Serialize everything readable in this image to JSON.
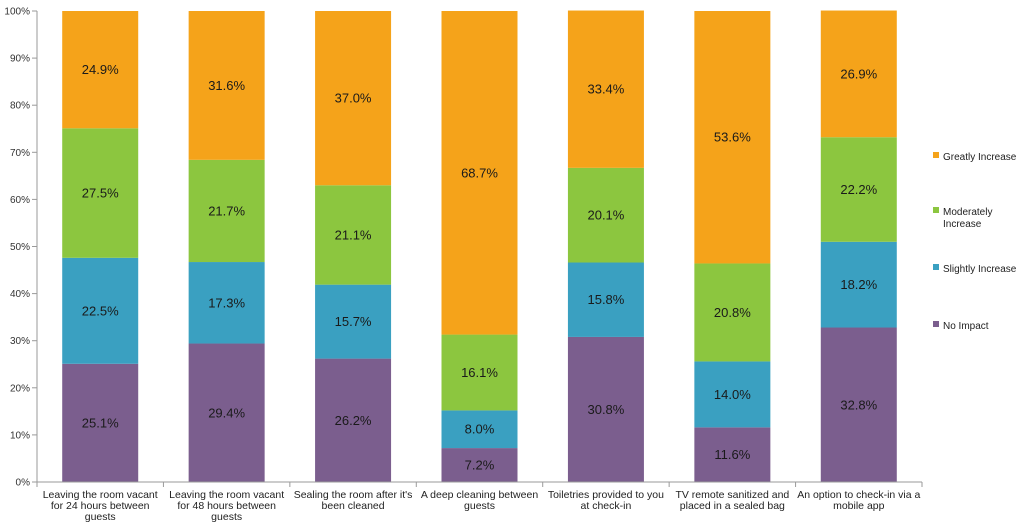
{
  "chart_data": {
    "type": "bar",
    "stacked": true,
    "percent": true,
    "categories": [
      [
        "Leaving the room vacant",
        "for 24 hours between",
        "guests"
      ],
      [
        "Leaving the room vacant",
        "for 48 hours between",
        "guests"
      ],
      [
        "Sealing the room after it's",
        "been cleaned"
      ],
      [
        "A deep cleaning between",
        "guests"
      ],
      [
        "Toiletries provided to you",
        "at check-in"
      ],
      [
        "TV remote sanitized and",
        "placed in a sealed bag"
      ],
      [
        "An option to check-in via a",
        "mobile app"
      ]
    ],
    "series": [
      {
        "name": "No Impact",
        "color": "#7b5e8e",
        "values": [
          25.1,
          29.4,
          26.2,
          7.2,
          30.8,
          11.6,
          32.8
        ],
        "labels": [
          "25.1%",
          "29.4%",
          "26.2%",
          "7.2%",
          "30.8%",
          "11.6%",
          "32.8%"
        ]
      },
      {
        "name": "Slightly Increase",
        "color": "#3aa0c1",
        "values": [
          22.5,
          17.3,
          15.7,
          8.0,
          15.8,
          14.0,
          18.2
        ],
        "labels": [
          "22.5%",
          "17.3%",
          "15.7%",
          "8.0%",
          "15.8%",
          "14.0%",
          "18.2%"
        ]
      },
      {
        "name": "Moderately Increase",
        "legend_lines": [
          "Moderately",
          "Increase"
        ],
        "color": "#8cc63f",
        "values": [
          27.5,
          21.7,
          21.1,
          16.1,
          20.1,
          20.8,
          22.2
        ],
        "labels": [
          "27.5%",
          "21.7%",
          "21.1%",
          "16.1%",
          "20.1%",
          "20.8%",
          "22.2%"
        ]
      },
      {
        "name": "Greatly Increase",
        "color": "#f5a31a",
        "values": [
          24.9,
          31.6,
          37.0,
          68.7,
          33.4,
          53.6,
          26.9
        ],
        "labels": [
          "24.9%",
          "31.6%",
          "37.0%",
          "68.7%",
          "33.4%",
          "53.6%",
          "26.9%"
        ]
      }
    ],
    "yticks": [
      "0%",
      "10%",
      "20%",
      "30%",
      "40%",
      "50%",
      "60%",
      "70%",
      "80%",
      "90%",
      "100%"
    ],
    "ylim": [
      0,
      100
    ],
    "legend_position": "right",
    "legend_order": [
      3,
      2,
      1,
      0
    ],
    "grid": false
  }
}
